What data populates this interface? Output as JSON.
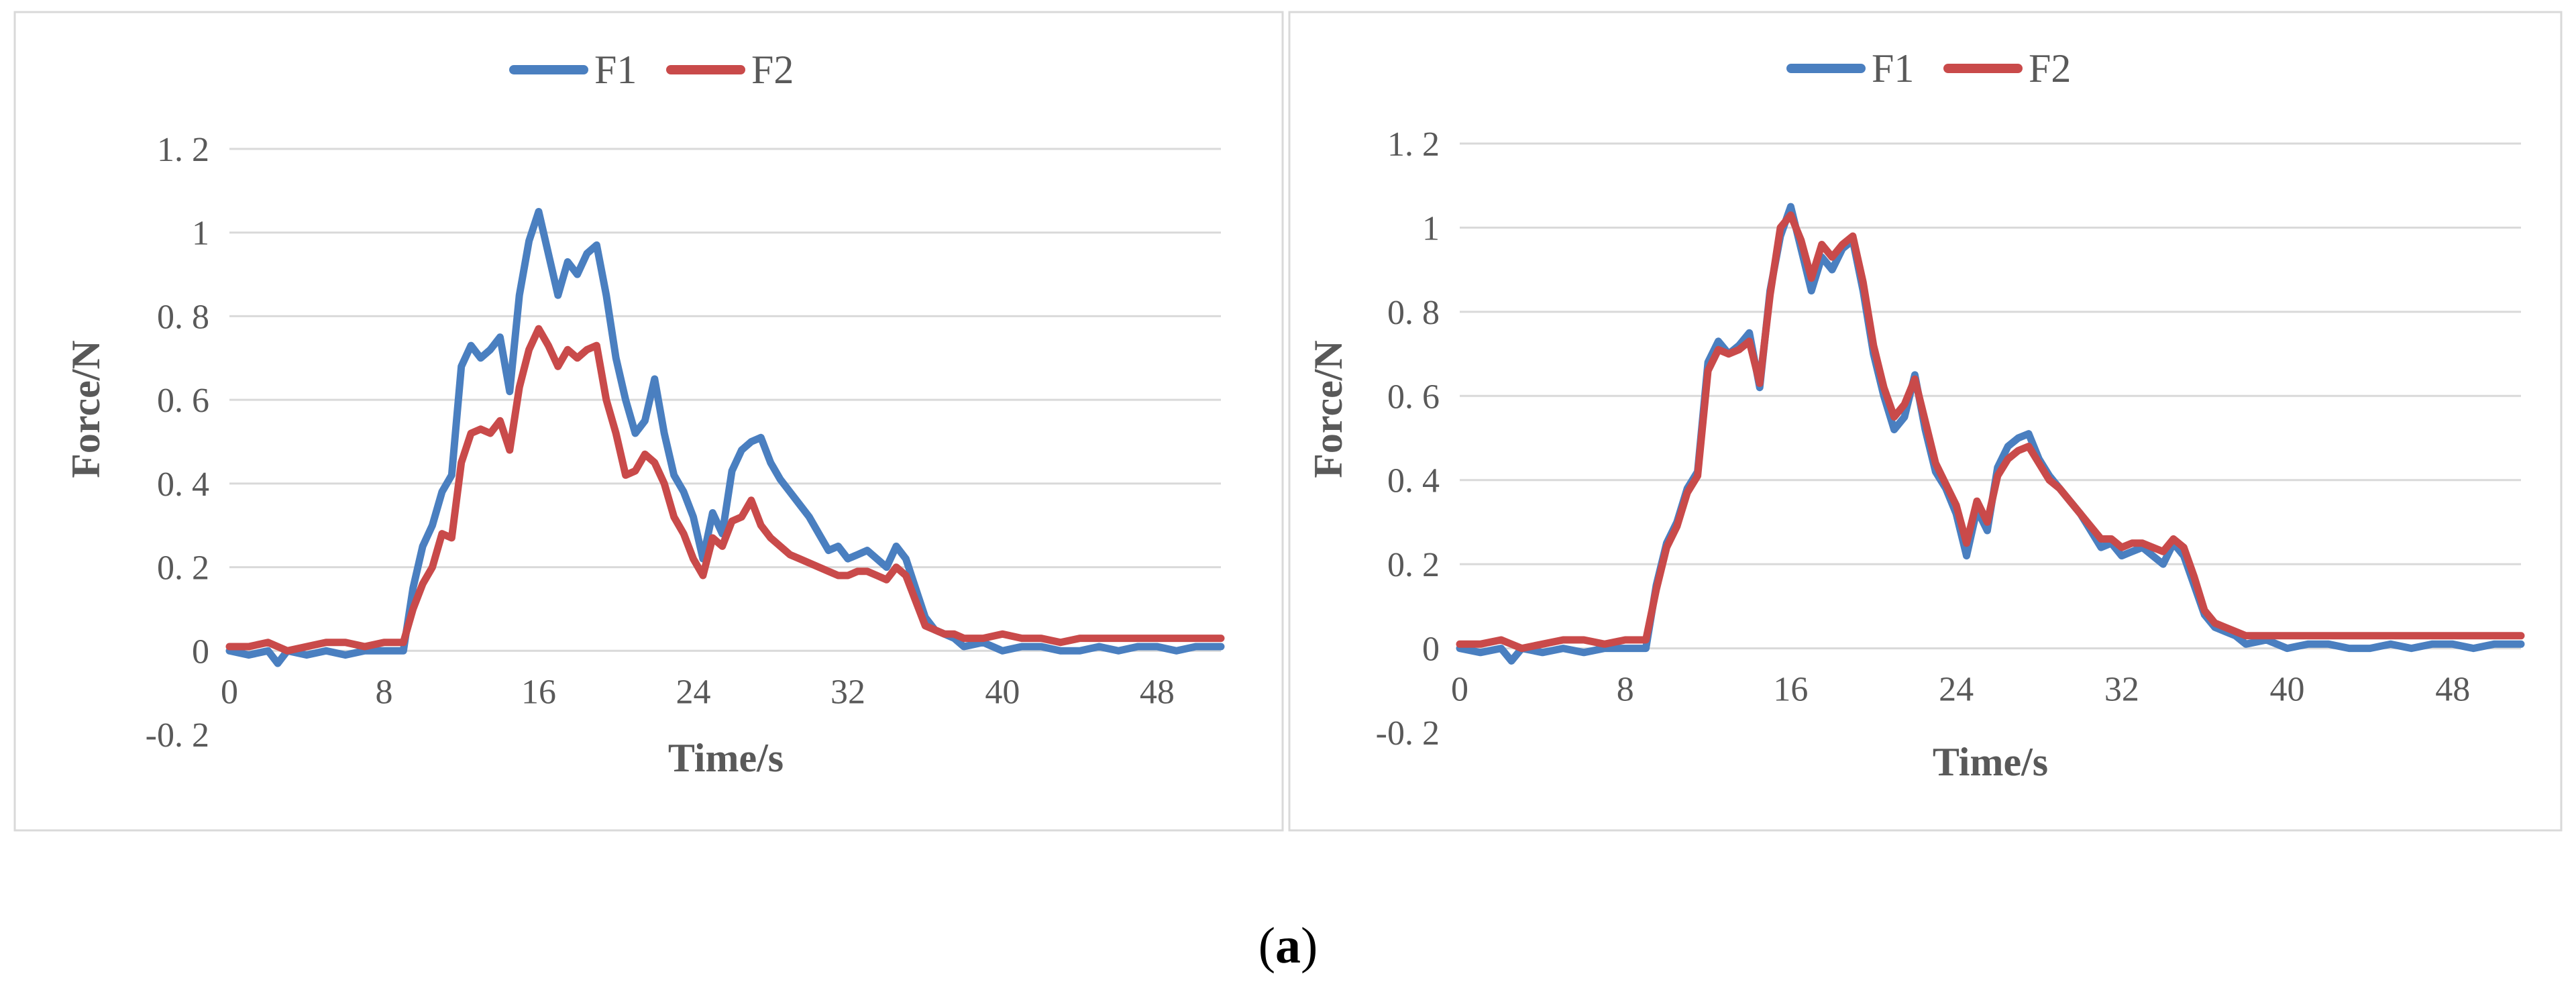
{
  "caption": {
    "prefix": "(",
    "letter": "a",
    "suffix": ")"
  },
  "colors": {
    "F1": "#4a7fc0",
    "F2": "#c94a4a",
    "grid": "#d9d9d9",
    "frame": "#d9d9d9"
  },
  "chart_data": [
    {
      "type": "line",
      "title": "",
      "xlabel": "Time/s",
      "ylabel": "Force/N",
      "xlim": [
        0,
        51.3
      ],
      "ylim": [
        -0.2,
        1.2
      ],
      "x_ticks": [
        0,
        8,
        16,
        24,
        32,
        40,
        48
      ],
      "x_tick_labels": [
        "0",
        "8",
        "16",
        "24",
        "32",
        "40",
        "48"
      ],
      "y_ticks": [
        1.2,
        1,
        0.8,
        0.6,
        0.4,
        0.2,
        0,
        -0.2
      ],
      "y_tick_labels": [
        "1. 2",
        "1",
        "0. 8",
        "0. 6",
        "0. 4",
        "0. 2",
        "0",
        "-0. 2"
      ],
      "grid": true,
      "legend": "top-center",
      "series": [
        {
          "name": "F1",
          "color": "#4a7fc0",
          "x": [
            0,
            1,
            2,
            2.5,
            3,
            4,
            5,
            6,
            7,
            8,
            9,
            9.5,
            10,
            10.5,
            11,
            11.5,
            12,
            12.5,
            13,
            13.5,
            14,
            14.5,
            15,
            15.5,
            16,
            16.5,
            17,
            17.5,
            18,
            18.5,
            19,
            19.5,
            20,
            20.5,
            21,
            21.5,
            22,
            22.5,
            23,
            23.5,
            24,
            24.5,
            25,
            25.5,
            26,
            26.5,
            27,
            27.5,
            28,
            28.5,
            29,
            29.5,
            30,
            30.5,
            31,
            31.5,
            32,
            32.5,
            33,
            33.5,
            34,
            34.5,
            35,
            35.5,
            36,
            36.5,
            37,
            37.5,
            38,
            39,
            40,
            41,
            42,
            43,
            44,
            45,
            46,
            47,
            48,
            49,
            50,
            51.3
          ],
          "y": [
            0,
            -0.01,
            0,
            -0.03,
            0,
            -0.01,
            0,
            -0.01,
            0,
            0,
            0,
            0.15,
            0.25,
            0.3,
            0.38,
            0.42,
            0.68,
            0.73,
            0.7,
            0.72,
            0.75,
            0.62,
            0.85,
            0.98,
            1.05,
            0.95,
            0.85,
            0.93,
            0.9,
            0.95,
            0.97,
            0.85,
            0.7,
            0.6,
            0.52,
            0.55,
            0.65,
            0.52,
            0.42,
            0.38,
            0.32,
            0.22,
            0.33,
            0.28,
            0.43,
            0.48,
            0.5,
            0.51,
            0.45,
            0.41,
            0.38,
            0.35,
            0.32,
            0.28,
            0.24,
            0.25,
            0.22,
            0.23,
            0.24,
            0.22,
            0.2,
            0.25,
            0.22,
            0.15,
            0.08,
            0.05,
            0.04,
            0.03,
            0.01,
            0.02,
            0,
            0.01,
            0.01,
            0,
            0,
            0.01,
            0,
            0.01,
            0.01,
            0,
            0.01,
            0.01
          ]
        },
        {
          "name": "F2",
          "color": "#c94a4a",
          "x": [
            0,
            1,
            2,
            2.5,
            3,
            4,
            5,
            6,
            7,
            8,
            9,
            9.5,
            10,
            10.5,
            11,
            11.5,
            12,
            12.5,
            13,
            13.5,
            14,
            14.5,
            15,
            15.5,
            16,
            16.5,
            17,
            17.5,
            18,
            18.5,
            19,
            19.5,
            20,
            20.5,
            21,
            21.5,
            22,
            22.5,
            23,
            23.5,
            24,
            24.5,
            25,
            25.5,
            26,
            26.5,
            27,
            27.5,
            28,
            28.5,
            29,
            29.5,
            30,
            30.5,
            31,
            31.5,
            32,
            32.5,
            33,
            33.5,
            34,
            34.5,
            35,
            35.5,
            36,
            36.5,
            37,
            37.5,
            38,
            39,
            40,
            41,
            42,
            43,
            44,
            45,
            46,
            47,
            48,
            49,
            50,
            51.3
          ],
          "y": [
            0.01,
            0.01,
            0.02,
            0.01,
            0,
            0.01,
            0.02,
            0.02,
            0.01,
            0.02,
            0.02,
            0.1,
            0.16,
            0.2,
            0.28,
            0.27,
            0.45,
            0.52,
            0.53,
            0.52,
            0.55,
            0.48,
            0.63,
            0.72,
            0.77,
            0.73,
            0.68,
            0.72,
            0.7,
            0.72,
            0.73,
            0.6,
            0.52,
            0.42,
            0.43,
            0.47,
            0.45,
            0.4,
            0.32,
            0.28,
            0.22,
            0.18,
            0.27,
            0.25,
            0.31,
            0.32,
            0.36,
            0.3,
            0.27,
            0.25,
            0.23,
            0.22,
            0.21,
            0.2,
            0.19,
            0.18,
            0.18,
            0.19,
            0.19,
            0.18,
            0.17,
            0.2,
            0.18,
            0.12,
            0.06,
            0.05,
            0.04,
            0.04,
            0.03,
            0.03,
            0.04,
            0.03,
            0.03,
            0.02,
            0.03,
            0.03,
            0.03,
            0.03,
            0.03,
            0.03,
            0.03,
            0.03
          ]
        }
      ]
    },
    {
      "type": "line",
      "title": "",
      "xlabel": "Time/s",
      "ylabel": "Force/N",
      "xlim": [
        0,
        51.3
      ],
      "ylim": [
        -0.2,
        1.2
      ],
      "x_ticks": [
        0,
        8,
        16,
        24,
        32,
        40,
        48
      ],
      "x_tick_labels": [
        "0",
        "8",
        "16",
        "24",
        "32",
        "40",
        "48"
      ],
      "y_ticks": [
        1.2,
        1,
        0.8,
        0.6,
        0.4,
        0.2,
        0,
        -0.2
      ],
      "y_tick_labels": [
        "1. 2",
        "1",
        "0. 8",
        "0. 6",
        "0. 4",
        "0. 2",
        "0",
        "-0. 2"
      ],
      "grid": true,
      "legend": "top-center",
      "series": [
        {
          "name": "F1",
          "color": "#4a7fc0",
          "x": [
            0,
            1,
            2,
            2.5,
            3,
            4,
            5,
            6,
            7,
            8,
            9,
            9.5,
            10,
            10.5,
            11,
            11.5,
            12,
            12.5,
            13,
            13.5,
            14,
            14.5,
            15,
            15.5,
            16,
            16.5,
            17,
            17.5,
            18,
            18.5,
            19,
            19.5,
            20,
            20.5,
            21,
            21.5,
            22,
            22.5,
            23,
            23.5,
            24,
            24.5,
            25,
            25.5,
            26,
            26.5,
            27,
            27.5,
            28,
            28.5,
            29,
            29.5,
            30,
            30.5,
            31,
            31.5,
            32,
            32.5,
            33,
            33.5,
            34,
            34.5,
            35,
            35.5,
            36,
            36.5,
            37,
            37.5,
            38,
            39,
            40,
            41,
            42,
            43,
            44,
            45,
            46,
            47,
            48,
            49,
            50,
            51.3
          ],
          "y": [
            0,
            -0.01,
            0,
            -0.03,
            0,
            -0.01,
            0,
            -0.01,
            0,
            0,
            0,
            0.15,
            0.25,
            0.3,
            0.38,
            0.42,
            0.68,
            0.73,
            0.7,
            0.72,
            0.75,
            0.62,
            0.85,
            0.98,
            1.05,
            0.95,
            0.85,
            0.93,
            0.9,
            0.95,
            0.97,
            0.85,
            0.7,
            0.6,
            0.52,
            0.55,
            0.65,
            0.52,
            0.42,
            0.38,
            0.32,
            0.22,
            0.33,
            0.28,
            0.43,
            0.48,
            0.5,
            0.51,
            0.45,
            0.41,
            0.38,
            0.35,
            0.32,
            0.28,
            0.24,
            0.25,
            0.22,
            0.23,
            0.24,
            0.22,
            0.2,
            0.25,
            0.22,
            0.15,
            0.08,
            0.05,
            0.04,
            0.03,
            0.01,
            0.02,
            0,
            0.01,
            0.01,
            0,
            0,
            0.01,
            0,
            0.01,
            0.01,
            0,
            0.01,
            0.01
          ]
        },
        {
          "name": "F2",
          "color": "#c94a4a",
          "x": [
            0,
            1,
            2,
            2.5,
            3,
            4,
            5,
            6,
            7,
            8,
            9,
            9.5,
            10,
            10.5,
            11,
            11.5,
            12,
            12.5,
            13,
            13.5,
            14,
            14.5,
            15,
            15.5,
            16,
            16.5,
            17,
            17.5,
            18,
            18.5,
            19,
            19.5,
            20,
            20.5,
            21,
            21.5,
            22,
            22.5,
            23,
            23.5,
            24,
            24.5,
            25,
            25.5,
            26,
            26.5,
            27,
            27.5,
            28,
            28.5,
            29,
            29.5,
            30,
            30.5,
            31,
            31.5,
            32,
            32.5,
            33,
            33.5,
            34,
            34.5,
            35,
            35.5,
            36,
            36.5,
            37,
            37.5,
            38,
            39,
            40,
            41,
            42,
            43,
            44,
            45,
            46,
            47,
            48,
            49,
            50,
            51.3
          ],
          "y": [
            0.01,
            0.01,
            0.02,
            0.01,
            0,
            0.01,
            0.02,
            0.02,
            0.01,
            0.02,
            0.02,
            0.14,
            0.24,
            0.29,
            0.37,
            0.41,
            0.66,
            0.71,
            0.7,
            0.71,
            0.73,
            0.63,
            0.84,
            1.0,
            1.03,
            0.97,
            0.88,
            0.96,
            0.93,
            0.96,
            0.98,
            0.87,
            0.72,
            0.62,
            0.55,
            0.58,
            0.64,
            0.54,
            0.44,
            0.39,
            0.34,
            0.25,
            0.35,
            0.3,
            0.41,
            0.45,
            0.47,
            0.48,
            0.44,
            0.4,
            0.38,
            0.35,
            0.32,
            0.29,
            0.26,
            0.26,
            0.24,
            0.25,
            0.25,
            0.24,
            0.23,
            0.26,
            0.24,
            0.17,
            0.09,
            0.06,
            0.05,
            0.04,
            0.03,
            0.03,
            0.03,
            0.03,
            0.03,
            0.03,
            0.03,
            0.03,
            0.03,
            0.03,
            0.03,
            0.03,
            0.03,
            0.03
          ]
        }
      ]
    }
  ]
}
